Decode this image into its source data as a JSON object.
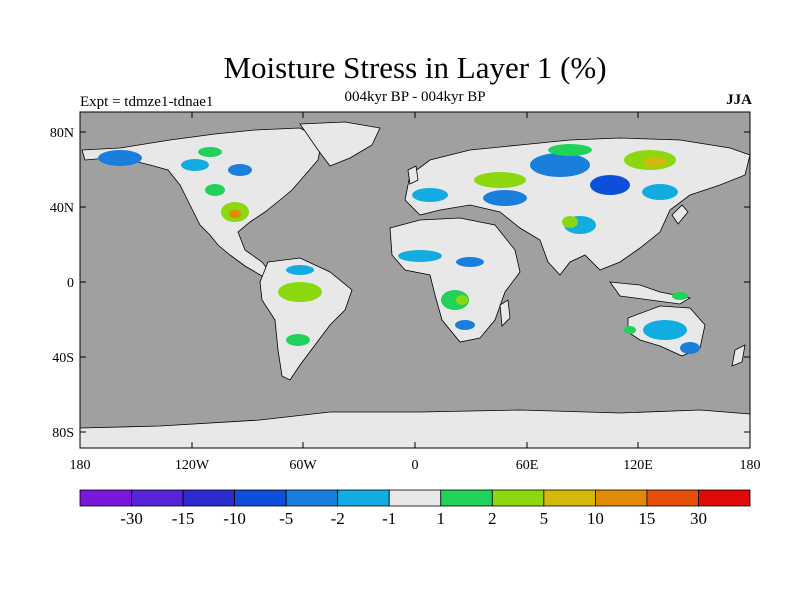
{
  "title": "Moisture Stress in Layer 1 (%)",
  "subtitle": "004kyr BP - 004kyr BP",
  "left_label": "Expt = tdmze1-tdnae1",
  "right_label": "JJA",
  "lat_ticks": [
    "80N",
    "40N",
    "0",
    "40S",
    "80S"
  ],
  "lon_ticks": [
    "180",
    "120W",
    "60W",
    "0",
    "60E",
    "120E",
    "180"
  ],
  "colorbar": {
    "colors": [
      "#7a17d8",
      "#5526d6",
      "#2b2bd0",
      "#0d4fd8",
      "#1a7fdc",
      "#13ace0",
      "#e8e8e8",
      "#20d25a",
      "#8cd80e",
      "#d4b90a",
      "#e08a06",
      "#e4500a",
      "#e00a0a"
    ],
    "labels": [
      "-30",
      "-15",
      "-10",
      "-5",
      "-2",
      "-1",
      "1",
      "2",
      "5",
      "10",
      "15",
      "30"
    ]
  },
  "colors": {
    "ocean": "#a0a0a0",
    "land": "#e8e8e8"
  }
}
